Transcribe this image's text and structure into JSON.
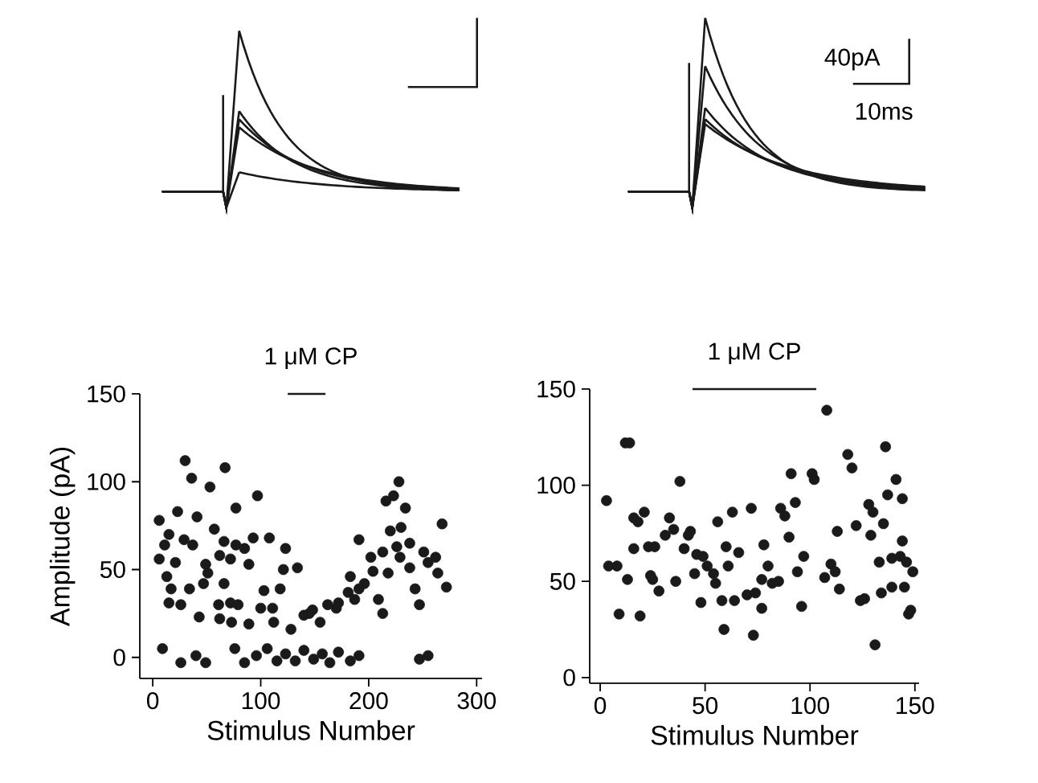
{
  "chart_data": [
    {
      "type": "scatter",
      "title": "1 μM CP",
      "xlabel": "Stimulus Number",
      "ylabel": "Amplitude (pA)",
      "xlim": [
        -12,
        305
      ],
      "ylim": [
        -12,
        150
      ],
      "xticks": [
        0,
        100,
        200,
        300
      ],
      "yticks": [
        0,
        50,
        100,
        150
      ],
      "series": [
        {
          "type": "line",
          "marker": "none",
          "color": "#1a1a1a",
          "x": [
            125,
            160
          ],
          "values": [
            150,
            150
          ]
        },
        {
          "marker": "circle",
          "color": "#1a1a1a",
          "x": [
            30,
            36,
            67,
            53,
            97,
            77,
            6,
            23,
            41,
            57,
            15,
            11,
            29,
            37,
            66,
            93,
            108,
            77,
            85,
            123,
            6,
            21,
            49,
            62,
            72,
            89,
            121,
            134,
            13,
            17,
            34,
            47,
            51,
            66,
            15,
            26,
            43,
            61,
            72,
            79,
            62,
            73,
            89,
            103,
            100,
            111,
            118,
            112,
            128,
            140,
            155,
            148,
            162,
            172,
            183,
            181,
            191,
            196,
            191,
            202,
            204,
            213,
            218,
            209,
            213,
            216,
            228,
            223,
            234,
            220,
            230,
            226,
            238,
            251,
            262,
            268,
            272,
            264,
            255,
            243,
            247,
            238,
            229,
            9,
            26,
            40,
            49,
            76,
            85,
            96,
            106,
            115,
            123,
            132,
            140,
            149,
            157,
            164,
            172,
            183,
            191,
            247,
            255,
            145,
            170,
            187
          ],
          "values": [
            112,
            102,
            108,
            97,
            92,
            85,
            78,
            83,
            80,
            73,
            70,
            64,
            67,
            64,
            66,
            68,
            68,
            64,
            62,
            62,
            56,
            54,
            53,
            58,
            56,
            53,
            50,
            51,
            46,
            39,
            39,
            42,
            48,
            42,
            31,
            30,
            23,
            30,
            31,
            30,
            22,
            20,
            19,
            38,
            28,
            28,
            39,
            20,
            16,
            24,
            20,
            27,
            30,
            31,
            46,
            37,
            39,
            42,
            67,
            57,
            49,
            60,
            48,
            33,
            25,
            89,
            100,
            92,
            85,
            72,
            74,
            63,
            65,
            60,
            57,
            76,
            40,
            48,
            54,
            39,
            30,
            51,
            57,
            5,
            -3,
            1,
            -3,
            5,
            -3,
            1,
            5,
            -2,
            2,
            -2,
            4,
            -1,
            2,
            -3,
            3,
            -2,
            1,
            -1,
            1,
            25,
            28,
            33
          ]
        }
      ]
    },
    {
      "type": "scatter",
      "title": "1 μM CP",
      "xlabel": "Stimulus Number",
      "xlim": [
        -5,
        152
      ],
      "ylim": [
        -3,
        150
      ],
      "xticks": [
        0,
        50,
        100,
        150
      ],
      "yticks": [
        0,
        50,
        100,
        150
      ],
      "annotations": [
        "40pA",
        "10ms"
      ],
      "series": [
        {
          "type": "line",
          "marker": "none",
          "color": "#1a1a1a",
          "x": [
            44,
            103
          ],
          "values": [
            150,
            150
          ]
        },
        {
          "marker": "circle",
          "color": "#1a1a1a",
          "x": [
            3,
            4,
            8,
            12,
            14,
            9,
            13,
            16,
            18,
            21,
            16,
            19,
            23,
            26,
            24,
            25,
            28,
            31,
            33,
            35,
            38,
            36,
            40,
            42,
            43,
            45,
            46,
            49,
            51,
            54,
            55,
            48,
            56,
            63,
            58,
            59,
            60,
            61,
            64,
            66,
            70,
            74,
            77,
            72,
            73,
            78,
            77,
            80,
            82,
            85,
            86,
            88,
            93,
            91,
            90,
            94,
            97,
            96,
            101,
            102,
            107,
            110,
            112,
            114,
            113,
            118,
            120,
            122,
            124,
            126,
            128,
            130,
            129,
            131,
            133,
            134,
            135,
            136,
            137,
            139,
            141,
            139,
            143,
            144,
            144,
            146,
            149,
            147,
            148,
            145,
            108
          ],
          "values": [
            92,
            58,
            58,
            122,
            122,
            33,
            51,
            83,
            81,
            86,
            67,
            32,
            68,
            68,
            53,
            51,
            45,
            74,
            83,
            77,
            102,
            50,
            67,
            74,
            76,
            54,
            64,
            63,
            58,
            54,
            49,
            39,
            81,
            86,
            40,
            25,
            68,
            58,
            40,
            65,
            43,
            44,
            36,
            88,
            22,
            69,
            51,
            58,
            49,
            50,
            88,
            84,
            91,
            106,
            73,
            55,
            63,
            37,
            106,
            103,
            52,
            59,
            55,
            46,
            76,
            116,
            109,
            79,
            40,
            41,
            90,
            86,
            74,
            17,
            60,
            44,
            80,
            120,
            95,
            47,
            103,
            62,
            63,
            71,
            93,
            60,
            55,
            33,
            35,
            47,
            139
          ]
        }
      ]
    }
  ]
}
